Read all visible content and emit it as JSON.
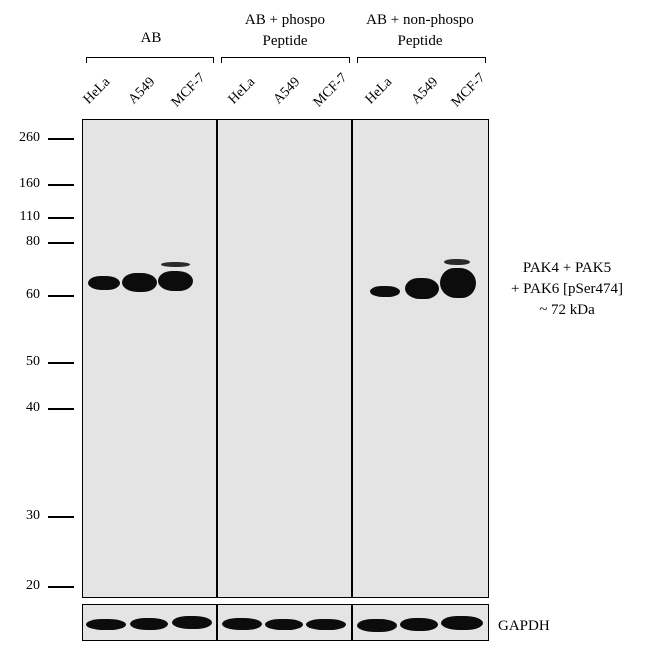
{
  "groups": [
    {
      "label": "AB"
    },
    {
      "label_line1": "AB + phospo",
      "label_line2": "Peptide"
    },
    {
      "label_line1": "AB + non-phospo",
      "label_line2": "Peptide"
    }
  ],
  "lanes": [
    "HeLa",
    "A549",
    "MCF-7",
    "HeLa",
    "A549",
    "MCF-7",
    "HeLa",
    "A549",
    "MCF-7"
  ],
  "mw_markers": [
    "260",
    "160",
    "110",
    "80",
    "60",
    "50",
    "40",
    "30",
    "20"
  ],
  "target": {
    "line1": "PAK4 + PAK5",
    "line2": "+ PAK6 [pSer474]",
    "line3": "~ 72 kDa"
  },
  "loading_control": "GAPDH",
  "colors": {
    "membrane": "#e4e4e4",
    "band": "#0c0c0c"
  }
}
